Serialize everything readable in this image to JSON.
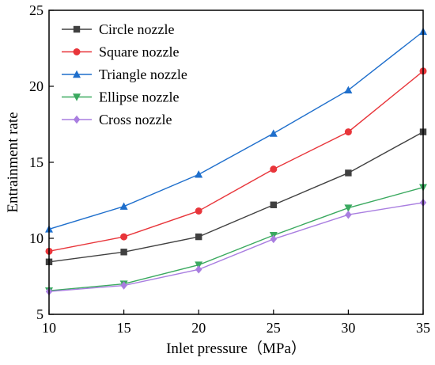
{
  "chart_data": {
    "type": "line",
    "title": "",
    "xlabel": "Inlet pressure（MPa）",
    "ylabel": "Entrainment rate",
    "xlim": [
      10,
      35
    ],
    "ylim": [
      5,
      25
    ],
    "x": [
      10,
      15,
      20,
      25,
      30,
      35
    ],
    "xticks": [
      "10",
      "15",
      "20",
      "25",
      "30",
      "35"
    ],
    "yticks": [
      "5",
      "10",
      "15",
      "20",
      "25"
    ],
    "grid": false,
    "legend_position": "top-left",
    "series": [
      {
        "name": "Circle nozzle",
        "color": "#404040",
        "marker": "square",
        "values": [
          8.45,
          9.1,
          10.1,
          12.2,
          14.3,
          17.0
        ]
      },
      {
        "name": "Square nozzle",
        "color": "#e8353a",
        "marker": "circle",
        "values": [
          9.15,
          10.1,
          11.8,
          14.55,
          17.0,
          21.0
        ]
      },
      {
        "name": "Triangle nozzle",
        "color": "#1f6fcc",
        "marker": "triangle-up",
        "values": [
          10.6,
          12.1,
          14.2,
          16.9,
          19.75,
          23.6
        ]
      },
      {
        "name": "Ellipse nozzle",
        "color": "#3aa95f",
        "marker": "triangle-down",
        "values": [
          6.55,
          7.0,
          8.25,
          10.2,
          12.0,
          13.35
        ]
      },
      {
        "name": "Cross nozzle",
        "color": "#a97ee0",
        "marker": "diamond",
        "values": [
          6.5,
          6.9,
          7.95,
          9.95,
          11.55,
          12.35
        ]
      }
    ]
  }
}
